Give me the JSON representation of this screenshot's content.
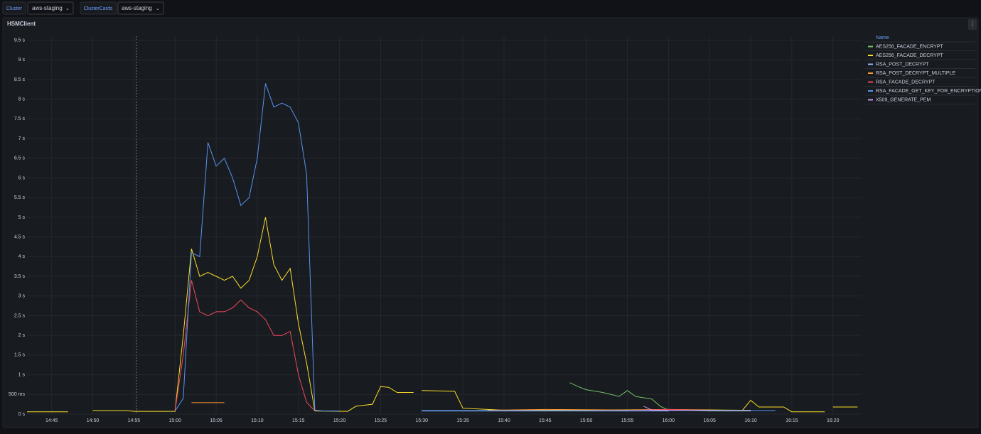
{
  "variables": [
    {
      "label": "Cluster",
      "value": "aws-staging"
    },
    {
      "label": "ClusterCards",
      "value": "aws-staging"
    }
  ],
  "chart_data": {
    "type": "line",
    "title": "HSMClient",
    "legend_title": "Name",
    "legend_position": "right",
    "grid": true,
    "xlim": [
      "14:42",
      "16:24"
    ],
    "xticks": [
      "14:45",
      "14:50",
      "14:55",
      "15:00",
      "15:05",
      "15:10",
      "15:15",
      "15:20",
      "15:25",
      "15:30",
      "15:35",
      "15:40",
      "15:45",
      "15:50",
      "15:55",
      "16:00",
      "16:05",
      "16:10",
      "16:15",
      "16:20"
    ],
    "ylim": [
      0,
      9.6
    ],
    "yticks": [
      {
        "value": 0,
        "label": "0 s"
      },
      {
        "value": 0.5,
        "label": "500 ms"
      },
      {
        "value": 1,
        "label": "1 s"
      },
      {
        "value": 1.5,
        "label": "1.5 s"
      },
      {
        "value": 2,
        "label": "2 s"
      },
      {
        "value": 2.5,
        "label": "2.5 s"
      },
      {
        "value": 3,
        "label": "3 s"
      },
      {
        "value": 3.5,
        "label": "3.5 s"
      },
      {
        "value": 4,
        "label": "4 s"
      },
      {
        "value": 4.5,
        "label": "4.5 s"
      },
      {
        "value": 5,
        "label": "5 s"
      },
      {
        "value": 5.5,
        "label": "5.5 s"
      },
      {
        "value": 6,
        "label": "6 s"
      },
      {
        "value": 6.5,
        "label": "6.5 s"
      },
      {
        "value": 7,
        "label": "7 s"
      },
      {
        "value": 7.5,
        "label": "7.5 s"
      },
      {
        "value": 8,
        "label": "8 s"
      },
      {
        "value": 8.5,
        "label": "8.5 s"
      },
      {
        "value": 9,
        "label": "9 s"
      },
      {
        "value": 9.5,
        "label": "9.5 s"
      }
    ],
    "series": [
      {
        "name": "AES256_FACADE_ENCRYPT",
        "color": "#73bf69",
        "x": [
          "15:48",
          "15:49",
          "15:50",
          "15:52",
          "15:54",
          "15:55",
          "15:56",
          "15:58",
          "15:59",
          "16:00",
          "16:05",
          "16:10"
        ],
        "values": [
          0.8,
          0.7,
          0.62,
          0.55,
          0.45,
          0.6,
          0.45,
          0.38,
          0.2,
          0.1,
          0.08,
          0.08
        ]
      },
      {
        "name": "AES256_FACADE_DECRYPT",
        "color": "#fade2a",
        "x": [
          "14:42",
          "14:47",
          "14:48",
          "14:50",
          "14:54",
          "14:55",
          "15:00",
          "15:01",
          "15:02",
          "15:03",
          "15:04",
          "15:05",
          "15:06",
          "15:07",
          "15:08",
          "15:09",
          "15:10",
          "15:11",
          "15:12",
          "15:13",
          "15:14",
          "15:15",
          "15:16",
          "15:17",
          "15:21",
          "15:22",
          "15:24",
          "15:25",
          "15:26",
          "15:27",
          "15:29",
          "15:30",
          "15:30",
          "15:34",
          "15:35",
          "15:40",
          "15:50",
          "16:00",
          "16:09",
          "16:10",
          "16:11",
          "16:14",
          "16:15",
          "16:19",
          "16:20",
          "16:20",
          "16:23"
        ],
        "values": [
          0.06,
          0.06,
          null,
          0.09,
          0.09,
          0.07,
          0.07,
          2.0,
          4.2,
          3.5,
          3.6,
          3.5,
          3.4,
          3.5,
          3.2,
          3.4,
          4.0,
          5.0,
          3.8,
          3.4,
          3.7,
          2.3,
          1.3,
          0.08,
          0.07,
          0.2,
          0.25,
          0.7,
          0.68,
          0.55,
          0.55,
          null,
          0.6,
          0.58,
          0.15,
          0.1,
          0.1,
          0.12,
          0.1,
          0.35,
          0.18,
          0.18,
          0.06,
          0.06,
          null,
          0.18,
          0.18
        ]
      },
      {
        "name": "RSA_POST_DECRYPT",
        "color": "#8ab8ff",
        "x": [
          "15:30",
          "15:40",
          "15:50",
          "16:00"
        ],
        "values": [
          0.08,
          0.08,
          0.08,
          0.08
        ]
      },
      {
        "name": "RSA_POST_DECRYPT_MULTIPLE",
        "color": "#ff9830",
        "x": [
          "15:02",
          "15:06",
          "15:07",
          "15:38",
          "15:45",
          "15:58"
        ],
        "values": [
          0.29,
          0.29,
          null,
          0.1,
          0.12,
          0.1
        ]
      },
      {
        "name": "RSA_FACADE_DECRYPT",
        "color": "#f2495c",
        "x": [
          "15:00",
          "15:01",
          "15:02",
          "15:03",
          "15:04",
          "15:05",
          "15:06",
          "15:07",
          "15:08",
          "15:09",
          "15:10",
          "15:11",
          "15:12",
          "15:13",
          "15:14",
          "15:15",
          "15:16",
          "15:17",
          "15:18",
          "15:55",
          "16:00",
          "16:05",
          "16:10"
        ],
        "values": [
          0.08,
          1.5,
          3.4,
          2.6,
          2.5,
          2.6,
          2.6,
          2.7,
          2.9,
          2.7,
          2.6,
          2.4,
          2.0,
          2.0,
          2.1,
          1.0,
          0.3,
          0.08,
          null,
          0.1,
          0.12,
          0.1,
          0.1
        ]
      },
      {
        "name": "RSA_FACADE_GET_KEY_FOR_ENCRYPTION",
        "color": "#5794f2",
        "x": [
          "15:00",
          "15:01",
          "15:02",
          "15:03",
          "15:04",
          "15:05",
          "15:06",
          "15:07",
          "15:08",
          "15:09",
          "15:10",
          "15:11",
          "15:12",
          "15:13",
          "15:14",
          "15:15",
          "15:16",
          "15:17",
          "15:18",
          "15:20",
          "15:21",
          "15:30",
          "16:00",
          "16:13"
        ],
        "values": [
          0.08,
          0.4,
          4.1,
          4.0,
          6.9,
          6.3,
          6.5,
          6.0,
          5.3,
          5.5,
          6.5,
          8.4,
          7.8,
          7.9,
          7.8,
          7.4,
          6.1,
          0.1,
          0.08,
          0.08,
          null,
          0.09,
          0.09,
          0.09
        ]
      },
      {
        "name": "X509_GENERATE_PEM",
        "color": "#ca95e5",
        "x": [
          "15:57",
          "15:58",
          "16:10"
        ],
        "values": [
          0.2,
          0.1,
          0.1
        ]
      }
    ]
  }
}
